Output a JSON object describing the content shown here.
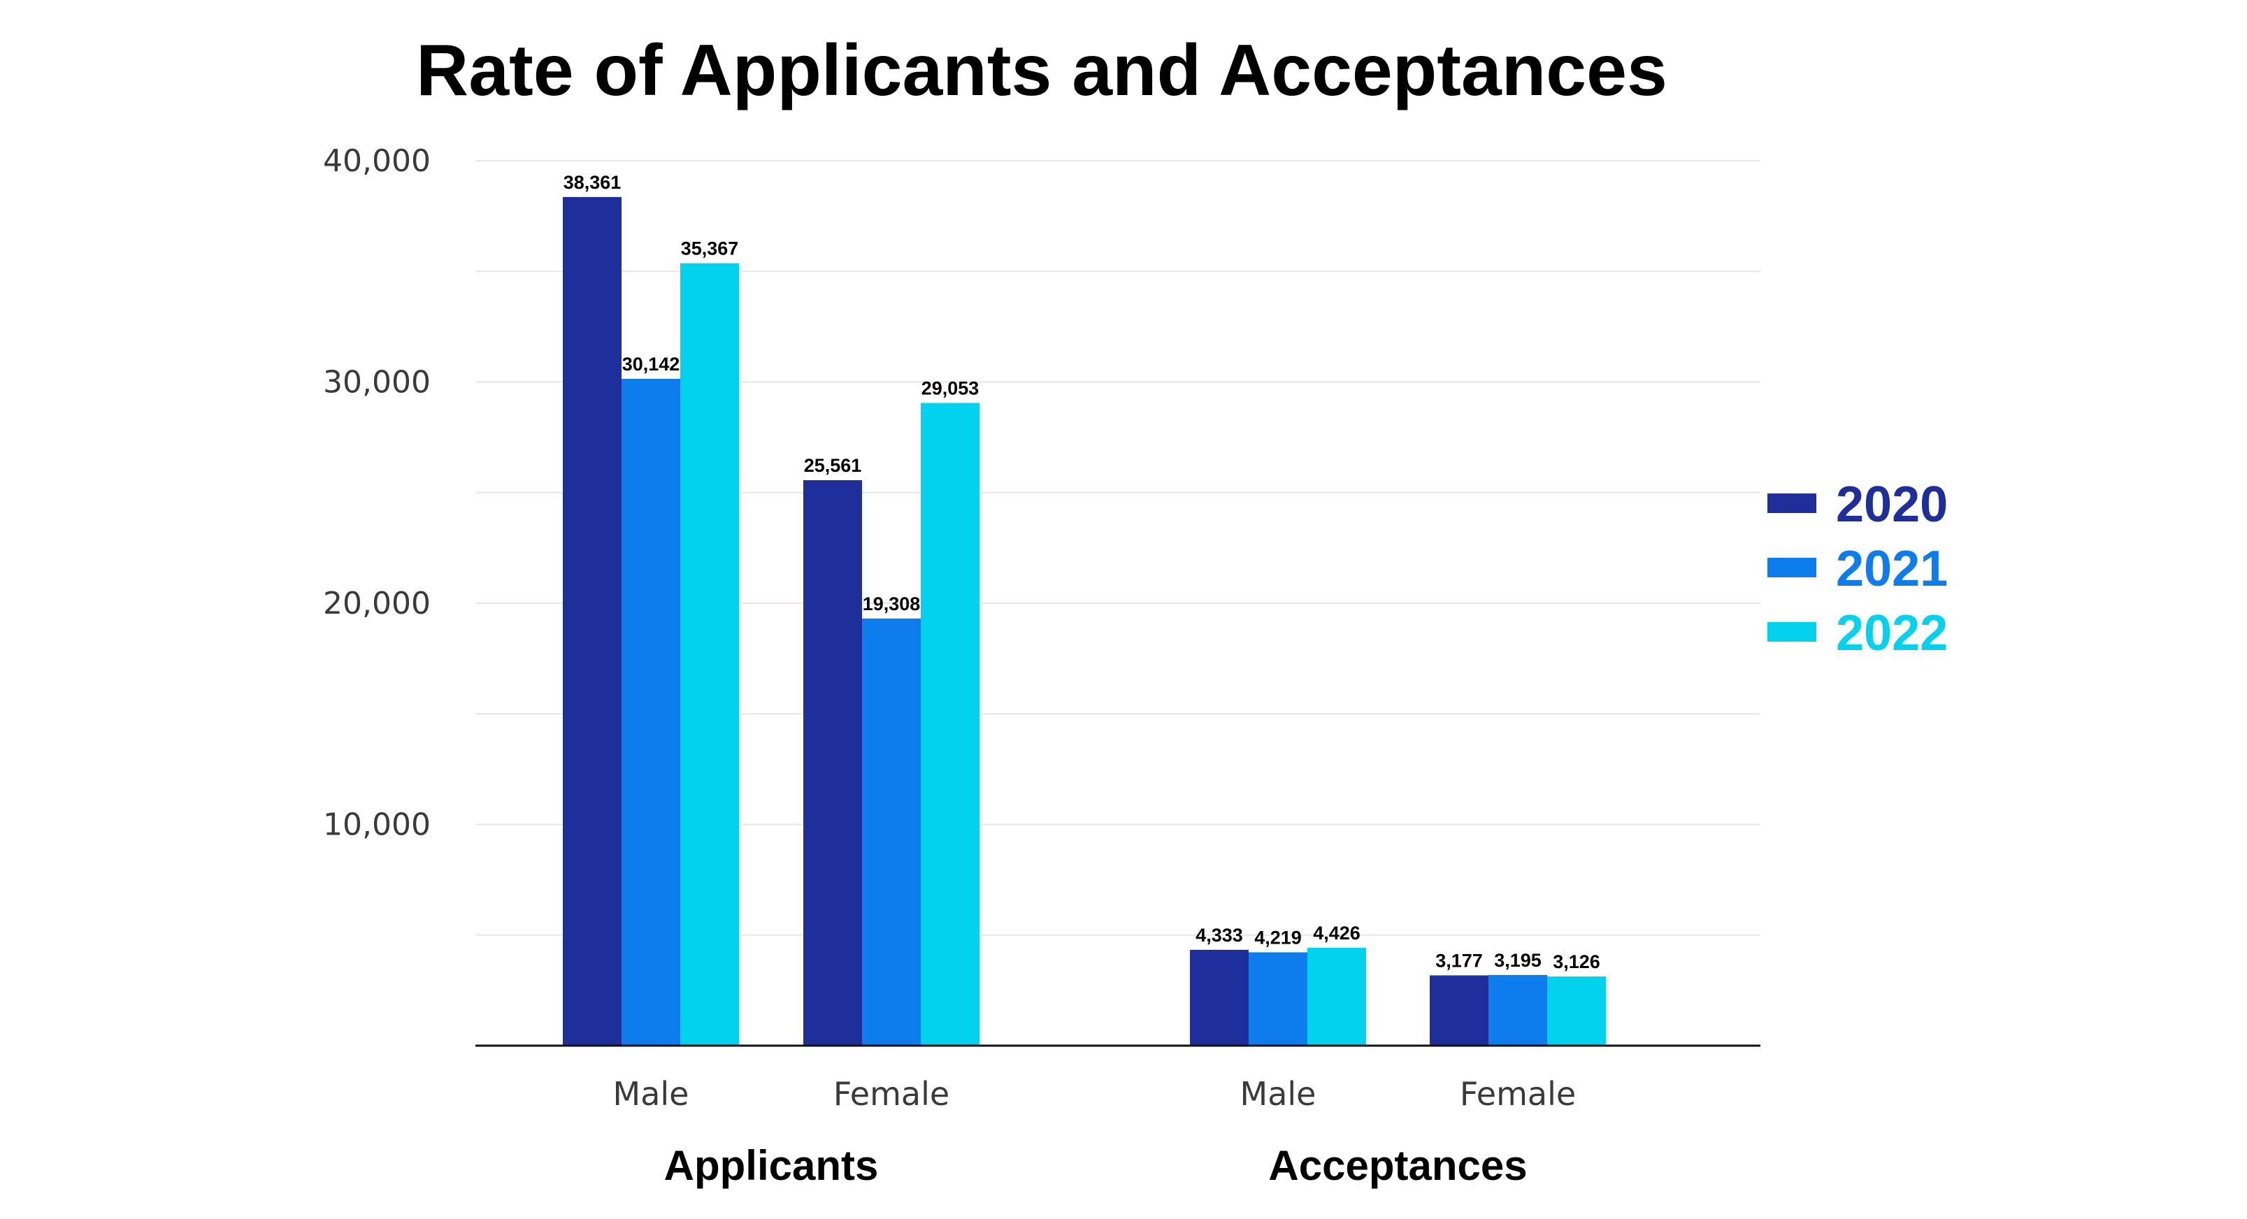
{
  "chart_data": {
    "type": "bar",
    "title": "Rate of Applicants and Acceptances",
    "groups": [
      {
        "label": "Applicants",
        "categories": [
          "Male",
          "Female"
        ]
      },
      {
        "label": "Acceptances",
        "categories": [
          "Male",
          "Female"
        ]
      }
    ],
    "series": [
      {
        "name": "2020",
        "color": "#1e2f9c",
        "values": [
          38361,
          25561,
          4333,
          3177
        ]
      },
      {
        "name": "2021",
        "color": "#0d7ced",
        "values": [
          30142,
          19308,
          4219,
          3195
        ]
      },
      {
        "name": "2022",
        "color": "#03d2ef",
        "values": [
          35367,
          29053,
          4426,
          3126
        ]
      }
    ],
    "value_labels": [
      [
        "38,361",
        "25,561",
        "4,333",
        "3,177"
      ],
      [
        "30,142",
        "19,308",
        "4,219",
        "3,195"
      ],
      [
        "35,367",
        "29,053",
        "4,426",
        "3,126"
      ]
    ],
    "y_ticks": [
      "10,000",
      "20,000",
      "30,000",
      "40,000"
    ],
    "y_tick_values": [
      10000,
      20000,
      30000,
      40000
    ],
    "ylim": [
      0,
      40000
    ],
    "grid": true,
    "legend_position": "right"
  }
}
